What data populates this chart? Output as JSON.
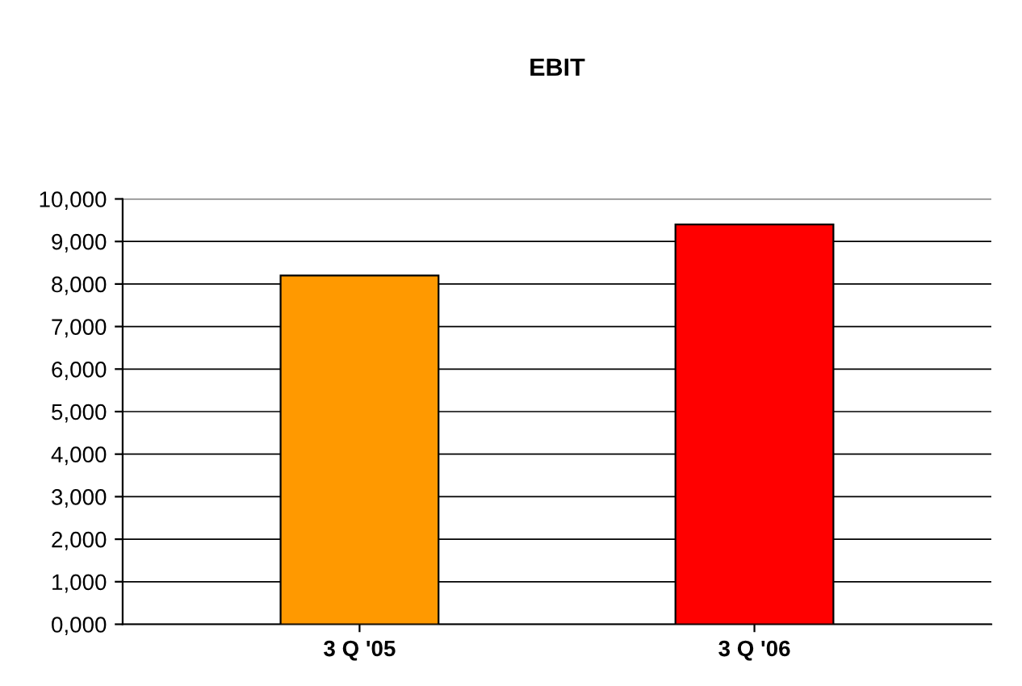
{
  "chart_data": {
    "type": "bar",
    "title": "EBIT",
    "categories": [
      "3 Q '05",
      "3 Q '06"
    ],
    "values": [
      8200,
      9400
    ],
    "colors": [
      "#ff9900",
      "#ff0000"
    ],
    "ylim": [
      0,
      10000
    ],
    "yticks": [
      {
        "value": 0,
        "label": "0,000"
      },
      {
        "value": 1000,
        "label": "1,000"
      },
      {
        "value": 2000,
        "label": "2,000"
      },
      {
        "value": 3000,
        "label": "3,000"
      },
      {
        "value": 4000,
        "label": "4,000"
      },
      {
        "value": 5000,
        "label": "5,000"
      },
      {
        "value": 6000,
        "label": "6,000"
      },
      {
        "value": 7000,
        "label": "7,000"
      },
      {
        "value": 8000,
        "label": "8,000"
      },
      {
        "value": 9000,
        "label": "9,000"
      },
      {
        "value": 10000,
        "label": "10,000"
      }
    ],
    "grid": "y"
  }
}
